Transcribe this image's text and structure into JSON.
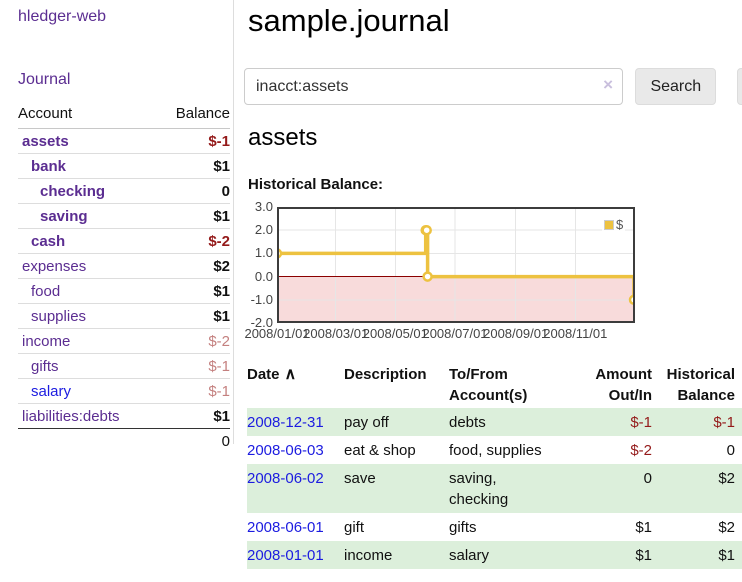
{
  "app": {
    "brand": "hledger-web"
  },
  "nav": {
    "journal": "Journal"
  },
  "sidebar": {
    "headers": {
      "account": "Account",
      "balance": "Balance"
    },
    "rows": [
      {
        "account": "assets",
        "indent": 0,
        "emphasized": true,
        "balance": "$-1",
        "negative": "strong",
        "balance_bold": true
      },
      {
        "account": "bank",
        "indent": 1,
        "emphasized": true,
        "balance": "$1",
        "negative": "none",
        "balance_bold": true
      },
      {
        "account": "checking",
        "indent": 2,
        "emphasized": true,
        "balance": "0",
        "negative": "none",
        "balance_bold": true
      },
      {
        "account": "saving",
        "indent": 2,
        "emphasized": true,
        "balance": "$1",
        "negative": "none",
        "balance_bold": true
      },
      {
        "account": "cash",
        "indent": 1,
        "emphasized": true,
        "balance": "$-2",
        "negative": "strong",
        "balance_bold": true
      },
      {
        "account": "expenses",
        "indent": 0,
        "emphasized": false,
        "balance": "$2",
        "negative": "none",
        "balance_bold": true
      },
      {
        "account": "food",
        "indent": 1,
        "emphasized": false,
        "balance": "$1",
        "negative": "none",
        "balance_bold": true
      },
      {
        "account": "supplies",
        "indent": 1,
        "emphasized": false,
        "balance": "$1",
        "negative": "none",
        "balance_bold": true
      },
      {
        "account": "income",
        "indent": 0,
        "emphasized": false,
        "balance": "$-2",
        "negative": "soft",
        "balance_bold": false
      },
      {
        "account": "gifts",
        "indent": 1,
        "emphasized": false,
        "balance": "$-1",
        "negative": "soft",
        "balance_bold": false
      },
      {
        "account": "salary",
        "indent": 1,
        "emphasized": false,
        "link_style": "blue",
        "balance": "$-1",
        "negative": "soft",
        "balance_bold": false
      },
      {
        "account": "liabilities:debts",
        "indent": 0,
        "emphasized": false,
        "balance": "$1",
        "negative": "none",
        "balance_bold": true
      }
    ],
    "total": "0"
  },
  "header": {
    "title": "sample.journal"
  },
  "search": {
    "value": "inacct:assets",
    "clear_label": "×",
    "submit_label": "Search",
    "help_label": "?"
  },
  "main": {
    "account_heading": "assets",
    "chart_title": "Historical Balance:"
  },
  "chart_data": {
    "type": "line",
    "step": true,
    "title": "Historical Balance:",
    "series": [
      {
        "name": "$",
        "points": [
          [
            "2008-01-01",
            1
          ],
          [
            "2008-06-01",
            2
          ],
          [
            "2008-06-02",
            2
          ],
          [
            "2008-06-03",
            0
          ],
          [
            "2008-12-31",
            -1
          ]
        ]
      }
    ],
    "xmin": "2008-01-01",
    "xmax": "2009-01-01",
    "ymin": -2,
    "ymax": 3,
    "yticks": [
      {
        "v": 3,
        "label": "3.0"
      },
      {
        "v": 2,
        "label": "2.0"
      },
      {
        "v": 1,
        "label": "1.0"
      },
      {
        "v": 0,
        "label": "0.0"
      },
      {
        "v": -1,
        "label": "-1.0"
      },
      {
        "v": -2,
        "label": "-2.0"
      }
    ],
    "xticks": [
      {
        "date": "2008-01-01",
        "label": "2008/01/01"
      },
      {
        "date": "2008-03-01",
        "label": "2008/03/01"
      },
      {
        "date": "2008-05-01",
        "label": "2008/05/01"
      },
      {
        "date": "2008-07-01",
        "label": "2008/07/01"
      },
      {
        "date": "2008-09-01",
        "label": "2008/09/01"
      },
      {
        "date": "2008-11-01",
        "label": "2008/11/01"
      }
    ],
    "legend_position": "top-right",
    "grid": true,
    "colors": {
      "line": "#EDC240",
      "marker_fill": "#ffffff",
      "negative_region": "#f8dbdb",
      "zero_line": "#8b0000",
      "grid": "#e6e6e6",
      "border": "#3c3c3c",
      "tick_text": "#444444"
    }
  },
  "register": {
    "headers": {
      "date": "Date",
      "description": "Description",
      "accounts": "To/From Account(s)",
      "amount": "Amount Out/In",
      "balance": "Historical Balance"
    },
    "sort_indicator": "∧",
    "rows": [
      {
        "date": "2008-12-31",
        "description": "pay off",
        "accounts": "debts",
        "amount": "$-1",
        "balance": "$-1"
      },
      {
        "date": "2008-06-03",
        "description": "eat & shop",
        "accounts": "food, supplies",
        "amount": "$-2",
        "balance": "0"
      },
      {
        "date": "2008-06-02",
        "description": "save",
        "accounts": "saving, checking",
        "amount": "0",
        "balance": "$2"
      },
      {
        "date": "2008-06-01",
        "description": "gift",
        "accounts": "gifts",
        "amount": "$1",
        "balance": "$2"
      },
      {
        "date": "2008-01-01",
        "description": "income",
        "accounts": "salary",
        "amount": "$1",
        "balance": "$1"
      }
    ]
  },
  "colors": {
    "purple_link": "#5b2d91",
    "blue_link": "#1c1ce0",
    "neg_strong": "#941a1a",
    "neg_soft": "#c4807f",
    "row_shade": "#dcefdb",
    "divider": "#dddddd",
    "chart_line": "#EDC240"
  }
}
